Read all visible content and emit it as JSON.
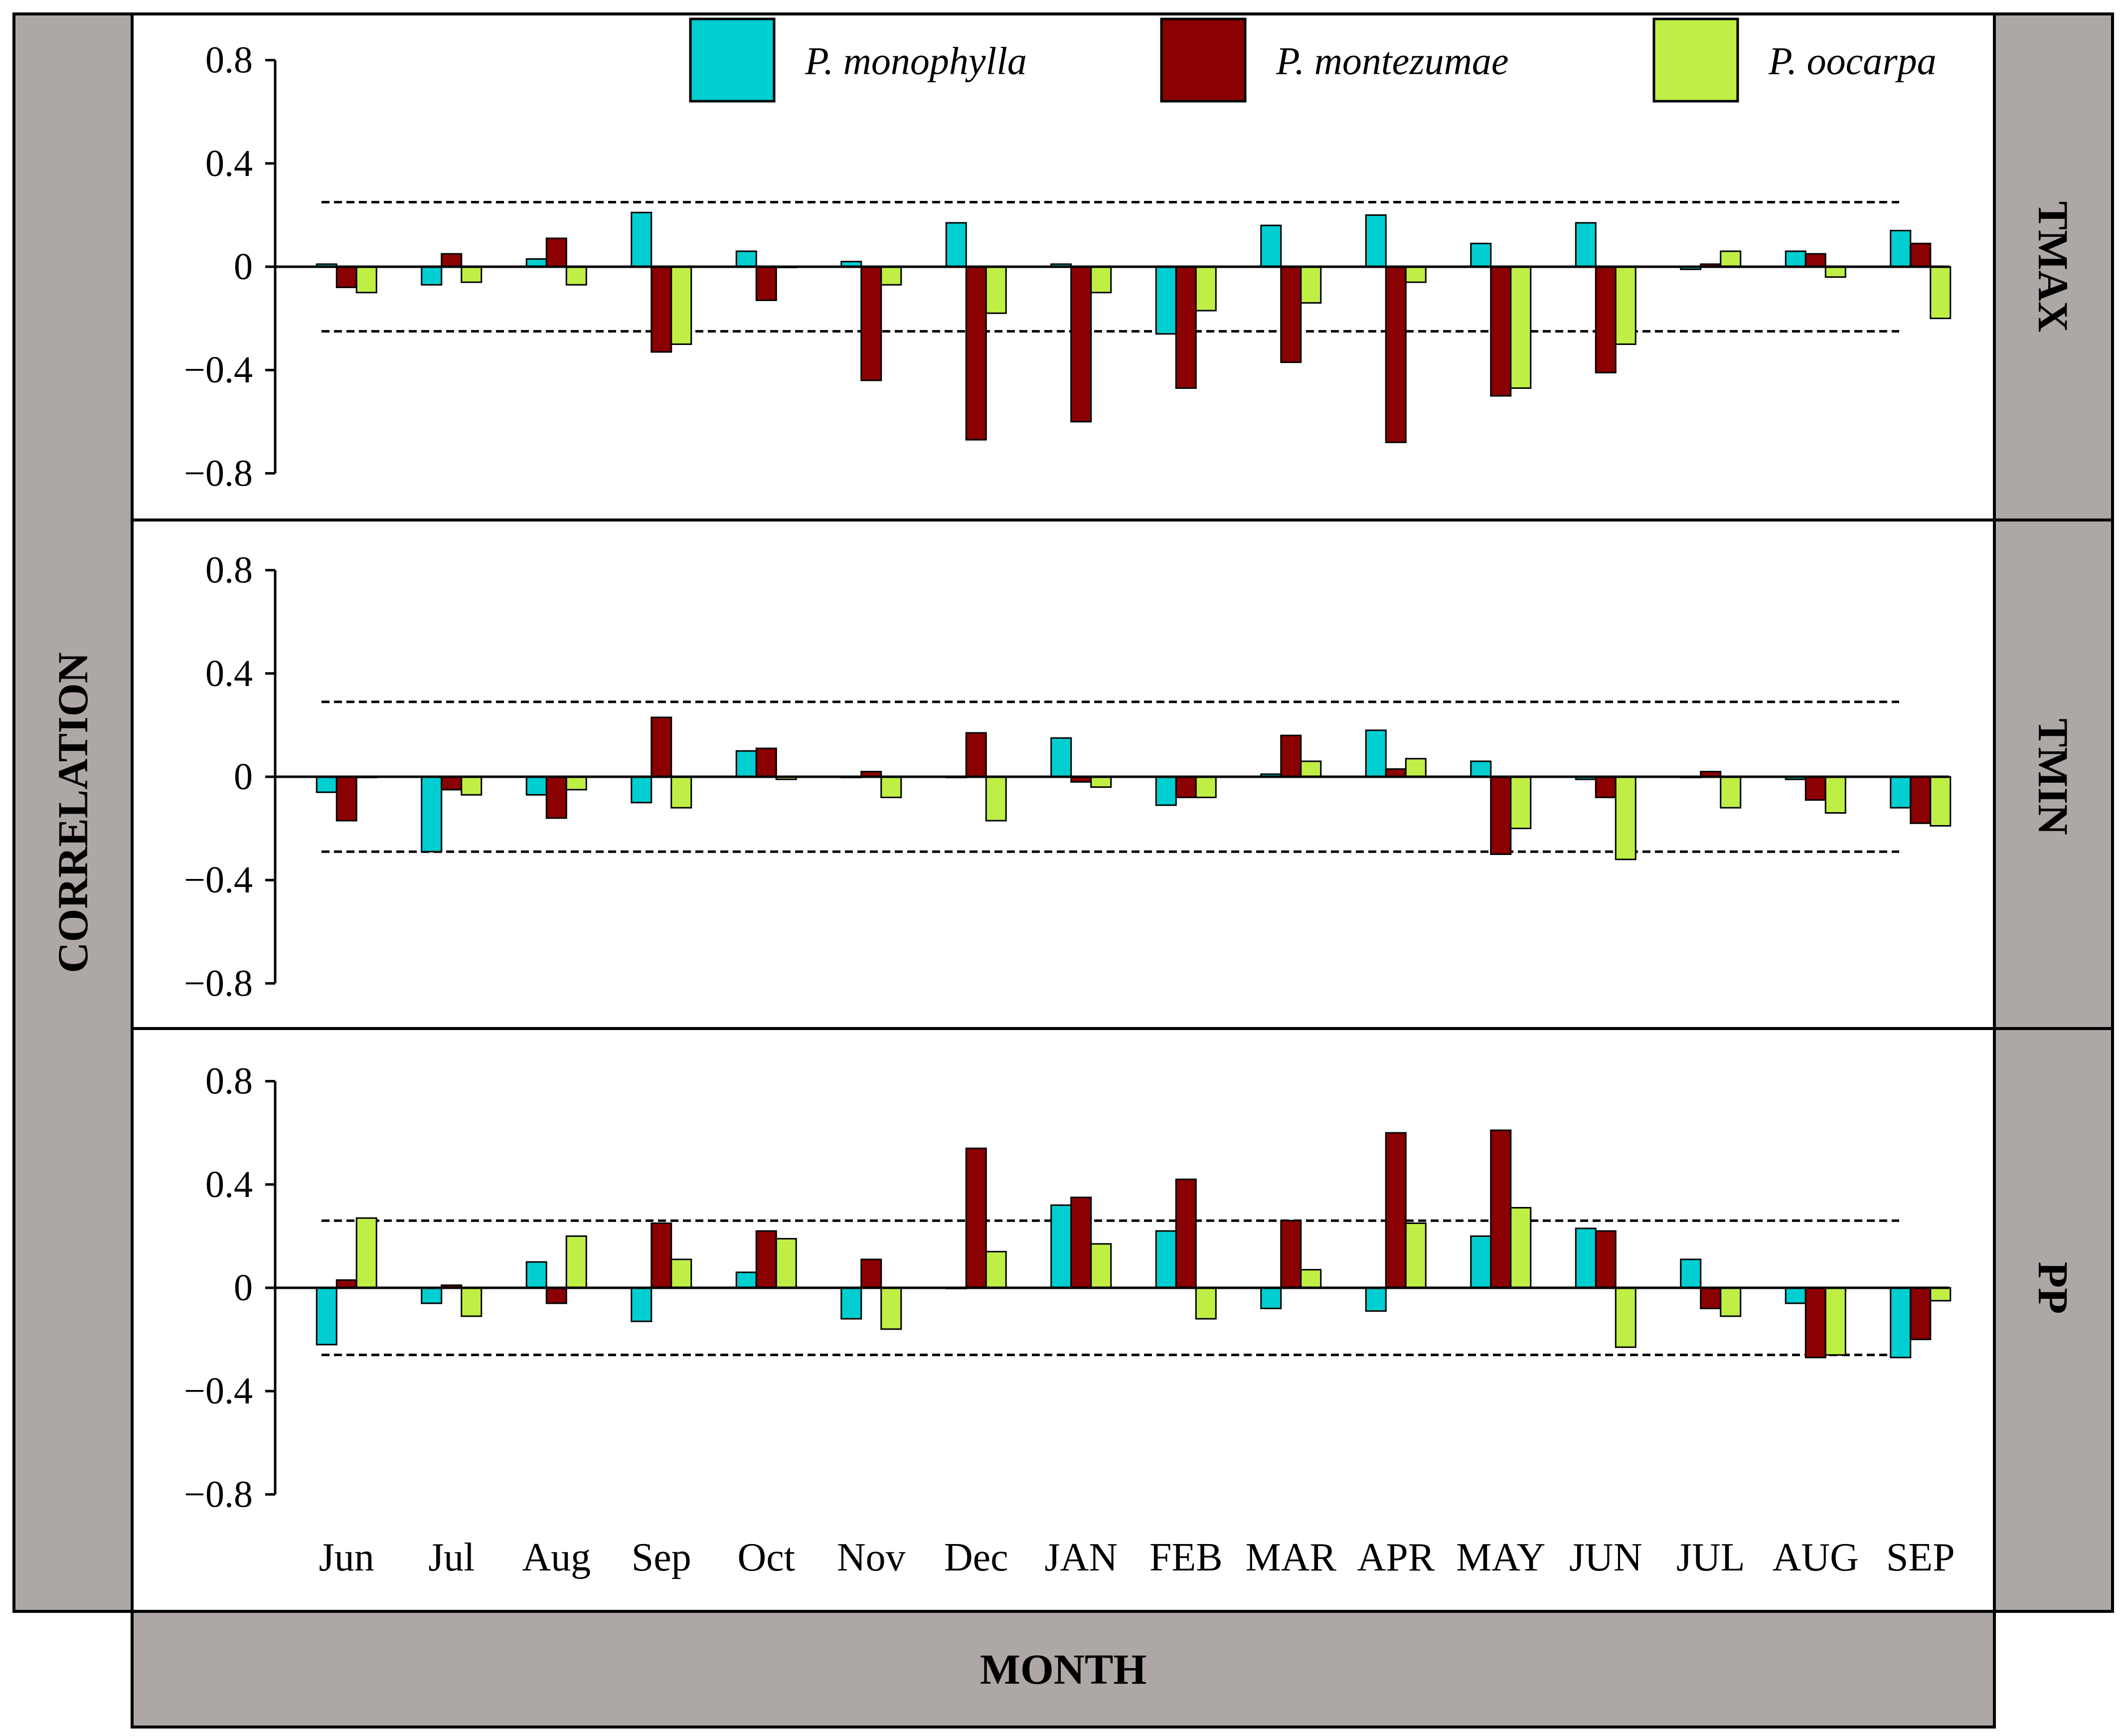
{
  "chart_data": {
    "type": "bar",
    "categories": [
      "Jun",
      "Jul",
      "Aug",
      "Sep",
      "Oct",
      "Nov",
      "Dec",
      "JAN",
      "FEB",
      "MAR",
      "APR",
      "MAY",
      "JUN",
      "JUL",
      "AUG",
      "SEP"
    ],
    "xlabel": "MONTH",
    "ylabel": "CORRELATION",
    "ylim": [
      -0.8,
      0.8
    ],
    "yticks": [
      0.8,
      0.4,
      0,
      -0.4,
      -0.8
    ],
    "ytick_labels": [
      "0.8",
      "0.4",
      "0",
      "−0.4",
      "−0.8"
    ],
    "legend": [
      "P. monophylla",
      "P. montezumae",
      "P. oocarpa"
    ],
    "legend_position": "top",
    "colors": [
      "#00CED1",
      "#8B0000",
      "#BFEF45"
    ],
    "panels": [
      {
        "name": "TMAX",
        "threshold": 0.25,
        "series": [
          {
            "name": "P. monophylla",
            "values": [
              0.01,
              -0.07,
              0.03,
              0.21,
              0.06,
              0.02,
              0.17,
              0.01,
              -0.26,
              0.16,
              0.2,
              0.09,
              0.17,
              -0.01,
              0.06,
              0.14
            ]
          },
          {
            "name": "P. montezumae",
            "values": [
              -0.08,
              0.05,
              0.11,
              -0.33,
              -0.13,
              -0.44,
              -0.67,
              -0.6,
              -0.47,
              -0.37,
              -0.68,
              -0.5,
              -0.41,
              0.01,
              0.05,
              0.09
            ]
          },
          {
            "name": "P. oocarpa",
            "values": [
              -0.1,
              -0.06,
              -0.07,
              -0.3,
              0.0,
              -0.07,
              -0.18,
              -0.1,
              -0.17,
              -0.14,
              -0.06,
              -0.47,
              -0.3,
              0.06,
              -0.04,
              -0.2
            ]
          }
        ]
      },
      {
        "name": "TMIN",
        "threshold": 0.29,
        "series": [
          {
            "name": "P. monophylla",
            "values": [
              -0.06,
              -0.29,
              -0.07,
              -0.1,
              0.1,
              0.0,
              0.0,
              0.15,
              -0.11,
              0.01,
              0.18,
              0.06,
              -0.01,
              0.0,
              -0.01,
              -0.12
            ]
          },
          {
            "name": "P. montezumae",
            "values": [
              -0.17,
              -0.05,
              -0.16,
              0.23,
              0.11,
              0.02,
              0.17,
              -0.02,
              -0.08,
              0.16,
              0.03,
              -0.3,
              -0.08,
              0.02,
              -0.09,
              -0.18
            ]
          },
          {
            "name": "P. oocarpa",
            "values": [
              0.0,
              -0.07,
              -0.05,
              -0.12,
              -0.01,
              -0.08,
              -0.17,
              -0.04,
              -0.08,
              0.06,
              0.07,
              -0.2,
              -0.32,
              -0.12,
              -0.14,
              -0.19
            ]
          }
        ]
      },
      {
        "name": "PP",
        "threshold": 0.26,
        "series": [
          {
            "name": "P. monophylla",
            "values": [
              -0.22,
              -0.06,
              0.1,
              -0.13,
              0.06,
              -0.12,
              0.0,
              0.32,
              0.22,
              -0.08,
              -0.09,
              0.2,
              0.23,
              0.11,
              -0.06,
              -0.27
            ]
          },
          {
            "name": "P. montezumae",
            "values": [
              0.03,
              0.01,
              -0.06,
              0.25,
              0.22,
              0.11,
              0.54,
              0.35,
              0.42,
              0.26,
              0.6,
              0.61,
              0.22,
              -0.08,
              -0.27,
              -0.2
            ]
          },
          {
            "name": "P. oocarpa",
            "values": [
              0.27,
              -0.11,
              0.2,
              0.11,
              0.19,
              -0.16,
              0.14,
              0.17,
              -0.12,
              0.07,
              0.25,
              0.31,
              -0.23,
              -0.11,
              -0.26,
              -0.05
            ]
          }
        ]
      }
    ]
  }
}
